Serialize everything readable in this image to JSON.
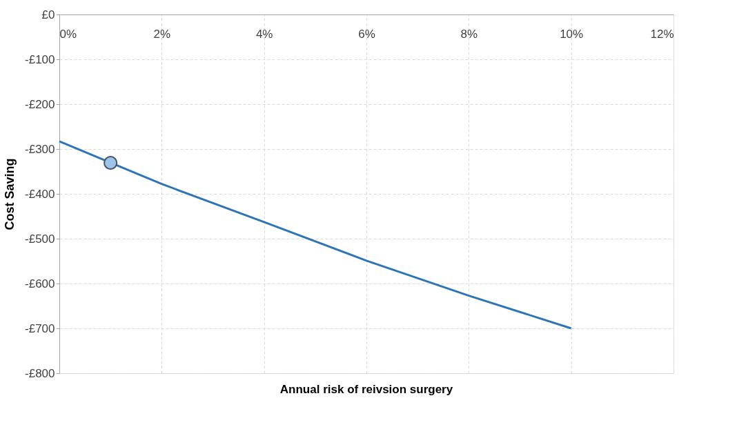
{
  "chart_data": {
    "type": "line",
    "xlabel": "Annual risk of reivsion surgery",
    "ylabel": "Cost Saving",
    "xlim": [
      0,
      12
    ],
    "xticks": [
      {
        "value": 0,
        "label": "0%"
      },
      {
        "value": 2,
        "label": "2%"
      },
      {
        "value": 4,
        "label": "4%"
      },
      {
        "value": 6,
        "label": "6%"
      },
      {
        "value": 8,
        "label": "8%"
      },
      {
        "value": 10,
        "label": "10%"
      },
      {
        "value": 12,
        "label": "12%"
      }
    ],
    "ylim": [
      -800,
      0
    ],
    "yticks": [
      {
        "value": 0,
        "label": "£0"
      },
      {
        "value": -100,
        "label": "-£100"
      },
      {
        "value": -200,
        "label": "-£200"
      },
      {
        "value": -300,
        "label": "-£300"
      },
      {
        "value": -400,
        "label": "-£400"
      },
      {
        "value": -500,
        "label": "-£500"
      },
      {
        "value": -600,
        "label": "-£600"
      },
      {
        "value": -700,
        "label": "-£700"
      },
      {
        "value": -800,
        "label": "-£800"
      }
    ],
    "grid": true,
    "series": [
      {
        "color": "#2e75b6",
        "marker": "none",
        "line_style": "solid",
        "x": [
          0,
          2,
          4,
          6,
          8,
          10
        ],
        "values": [
          -283,
          -378,
          -463,
          -549,
          -627,
          -700
        ]
      },
      {
        "type": "scatter",
        "color": "#9dc3e6",
        "marker": "circle",
        "x": [
          1
        ],
        "values": [
          -331
        ]
      }
    ]
  }
}
